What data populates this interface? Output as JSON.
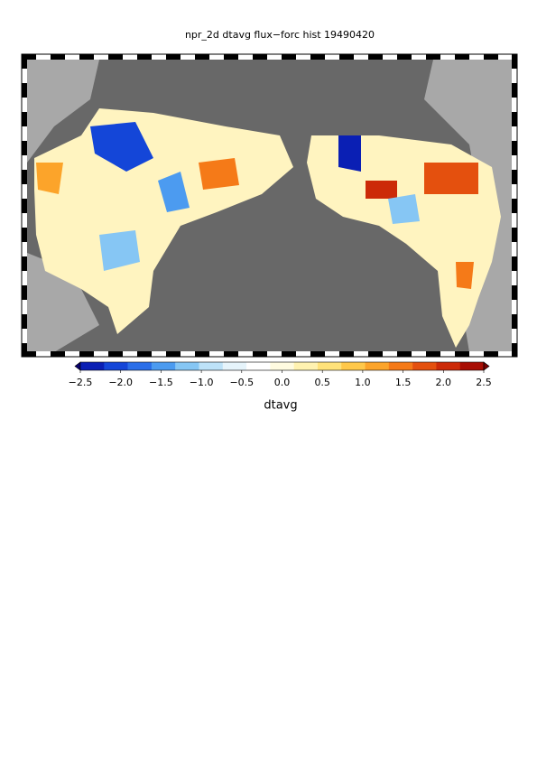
{
  "chart_data": {
    "type": "map",
    "title": "npr_2d dtavg flux−forc hist 19490420",
    "colorbar": {
      "label": "dtavg",
      "lim": [
        -2.5,
        2.5
      ],
      "ticks": [
        {
          "value": -2.5,
          "label": "−2.5"
        },
        {
          "value": -2,
          "label": "−2.0"
        },
        {
          "value": -1.5,
          "label": "−1.5"
        },
        {
          "value": -1,
          "label": "−1.0"
        },
        {
          "value": -0.5,
          "label": "−0.5"
        },
        {
          "value": 0,
          "label": "0.0"
        },
        0.5,
        {
          "value": 1,
          "label": "1.0"
        },
        1.5,
        {
          "value": 2,
          "label": "2.0"
        },
        2.5
      ],
      "colors": [
        "#08006e",
        "#0a1fb4",
        "#1446d8",
        "#2a6ee8",
        "#4c9bf0",
        "#86c6f4",
        "#bde2f8",
        "#e6f4fb",
        "#ffffff",
        "#fffbe0",
        "#fff2b0",
        "#ffe27a",
        "#ffc84a",
        "#fca42a",
        "#f57a18",
        "#e4500e",
        "#cc2a08",
        "#a80e04",
        "#7a0000"
      ]
    }
  }
}
